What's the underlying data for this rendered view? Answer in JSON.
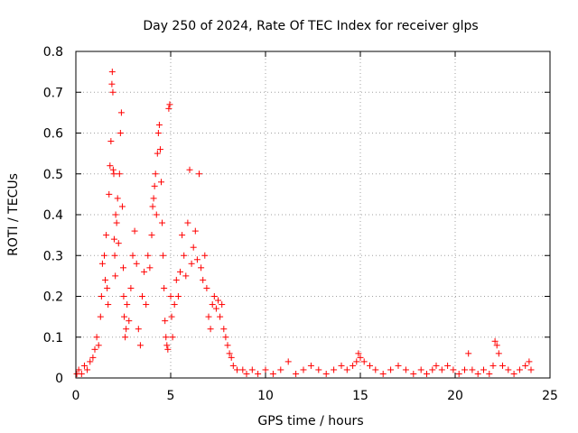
{
  "chart_data": {
    "type": "scatter",
    "title": "Day 250 of 2024, Rate Of TEC Index for receiver glps",
    "xlabel": "GPS time / hours",
    "ylabel": "ROTI / TECUs",
    "xlim": [
      0,
      25
    ],
    "ylim": [
      0,
      0.8
    ],
    "xticks": [
      "0",
      "5",
      "10",
      "15",
      "20",
      "25"
    ],
    "yticks": [
      "0",
      "0.1",
      "0.2",
      "0.3",
      "0.4",
      "0.5",
      "0.6",
      "0.7",
      "0.8"
    ],
    "grid": true,
    "marker": "plus",
    "color": "#ff0000",
    "series": [
      {
        "x": [
          0.05,
          0.15,
          0.3,
          0.45,
          0.6,
          0.75,
          0.9,
          1.0,
          1.1,
          1.2,
          1.3,
          1.35,
          1.4,
          1.5,
          1.55,
          1.6,
          1.65,
          1.7,
          1.75,
          1.8,
          1.85,
          1.9,
          1.92,
          1.95,
          1.97,
          2.0,
          2.02,
          2.05,
          2.08,
          2.1,
          2.15,
          2.2,
          2.25,
          2.3,
          2.35,
          2.4,
          2.45,
          2.5,
          2.52,
          2.55,
          2.6,
          2.65,
          2.7,
          2.8,
          2.9,
          3.0,
          3.1,
          3.2,
          3.3,
          3.4,
          3.5,
          3.6,
          3.7,
          3.8,
          3.9,
          4.0,
          4.05,
          4.1,
          4.15,
          4.2,
          4.25,
          4.3,
          4.35,
          4.4,
          4.45,
          4.5,
          4.55,
          4.6,
          4.65,
          4.7,
          4.75,
          4.8,
          4.85,
          4.9,
          4.95,
          5.0,
          5.05,
          5.1,
          5.2,
          5.3,
          5.4,
          5.5,
          5.6,
          5.7,
          5.8,
          5.9,
          6.0,
          6.1,
          6.2,
          6.3,
          6.4,
          6.5,
          6.6,
          6.7,
          6.8,
          6.9,
          7.0,
          7.1,
          7.2,
          7.3,
          7.4,
          7.5,
          7.6,
          7.7,
          7.8,
          7.9,
          8.0,
          8.1,
          8.2,
          8.3,
          8.5,
          8.8,
          9.0,
          9.3,
          9.6,
          10.0,
          10.4,
          10.8,
          11.2,
          11.6,
          12.0,
          12.4,
          12.8,
          13.2,
          13.6,
          14.0,
          14.3,
          14.6,
          14.8,
          14.9,
          15.0,
          15.2,
          15.5,
          15.8,
          16.2,
          16.6,
          17.0,
          17.4,
          17.8,
          18.2,
          18.5,
          18.8,
          19.0,
          19.3,
          19.6,
          19.9,
          20.2,
          20.5,
          20.7,
          20.9,
          21.2,
          21.5,
          21.8,
          22.0,
          22.1,
          22.2,
          22.3,
          22.5,
          22.8,
          23.1,
          23.4,
          23.7,
          23.9,
          24.0
        ],
        "y": [
          0.01,
          0.02,
          0.01,
          0.03,
          0.02,
          0.04,
          0.05,
          0.07,
          0.1,
          0.08,
          0.15,
          0.2,
          0.28,
          0.3,
          0.24,
          0.35,
          0.22,
          0.18,
          0.45,
          0.52,
          0.58,
          0.72,
          0.75,
          0.7,
          0.51,
          0.5,
          0.34,
          0.3,
          0.25,
          0.4,
          0.38,
          0.44,
          0.33,
          0.5,
          0.6,
          0.65,
          0.42,
          0.27,
          0.2,
          0.15,
          0.1,
          0.12,
          0.18,
          0.14,
          0.22,
          0.3,
          0.36,
          0.28,
          0.12,
          0.08,
          0.2,
          0.26,
          0.18,
          0.3,
          0.27,
          0.35,
          0.42,
          0.44,
          0.47,
          0.5,
          0.4,
          0.55,
          0.6,
          0.62,
          0.56,
          0.48,
          0.38,
          0.3,
          0.22,
          0.14,
          0.1,
          0.08,
          0.07,
          0.66,
          0.67,
          0.2,
          0.15,
          0.1,
          0.18,
          0.24,
          0.2,
          0.26,
          0.35,
          0.3,
          0.25,
          0.38,
          0.51,
          0.28,
          0.32,
          0.36,
          0.29,
          0.5,
          0.27,
          0.24,
          0.3,
          0.22,
          0.15,
          0.12,
          0.18,
          0.2,
          0.17,
          0.19,
          0.15,
          0.18,
          0.12,
          0.1,
          0.08,
          0.06,
          0.05,
          0.03,
          0.02,
          0.02,
          0.01,
          0.02,
          0.01,
          0.02,
          0.01,
          0.02,
          0.04,
          0.01,
          0.02,
          0.03,
          0.02,
          0.01,
          0.02,
          0.03,
          0.02,
          0.03,
          0.04,
          0.06,
          0.05,
          0.04,
          0.03,
          0.02,
          0.01,
          0.02,
          0.03,
          0.02,
          0.01,
          0.02,
          0.01,
          0.02,
          0.03,
          0.02,
          0.03,
          0.02,
          0.01,
          0.02,
          0.06,
          0.02,
          0.01,
          0.02,
          0.01,
          0.03,
          0.09,
          0.08,
          0.06,
          0.03,
          0.02,
          0.01,
          0.02,
          0.03,
          0.04,
          0.02
        ]
      }
    ]
  }
}
